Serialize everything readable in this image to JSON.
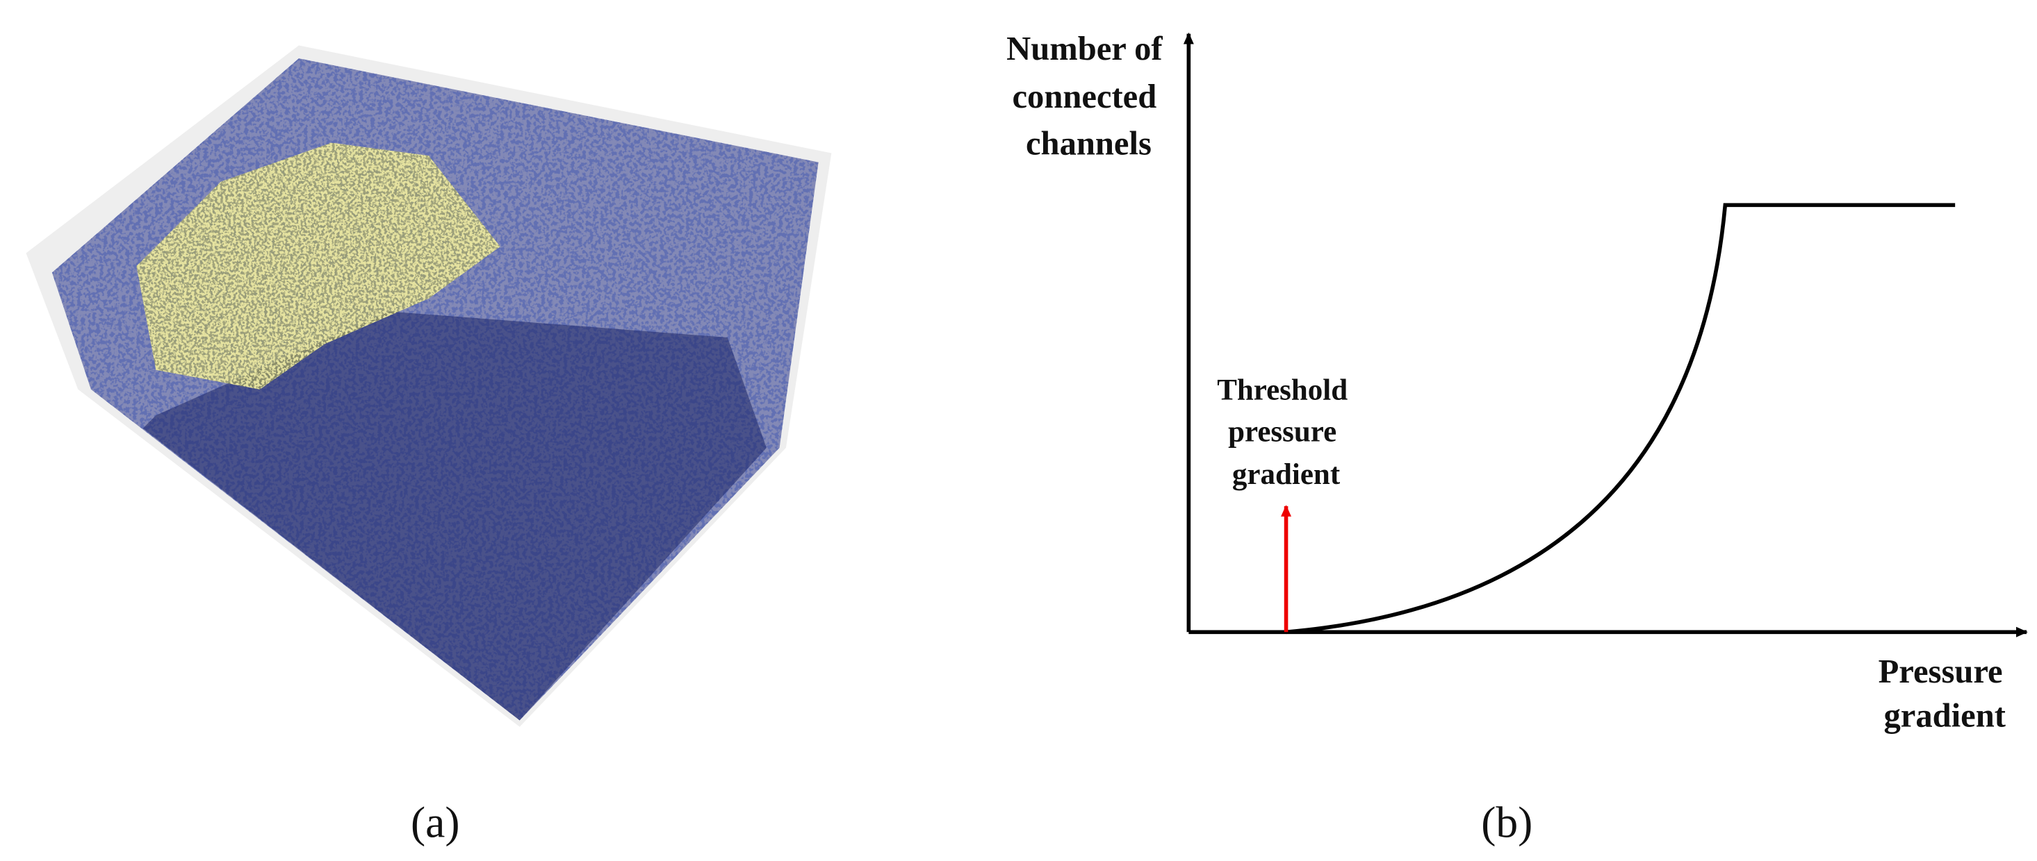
{
  "panel_a": {
    "label": "(a)"
  },
  "panel_b": {
    "label": "(b)",
    "y_axis_label": [
      "Number of",
      "connected",
      "channels"
    ],
    "x_axis_label": [
      "Pressure",
      "gradient"
    ],
    "annotation": [
      "Threshold",
      "pressure",
      "gradient"
    ]
  }
}
